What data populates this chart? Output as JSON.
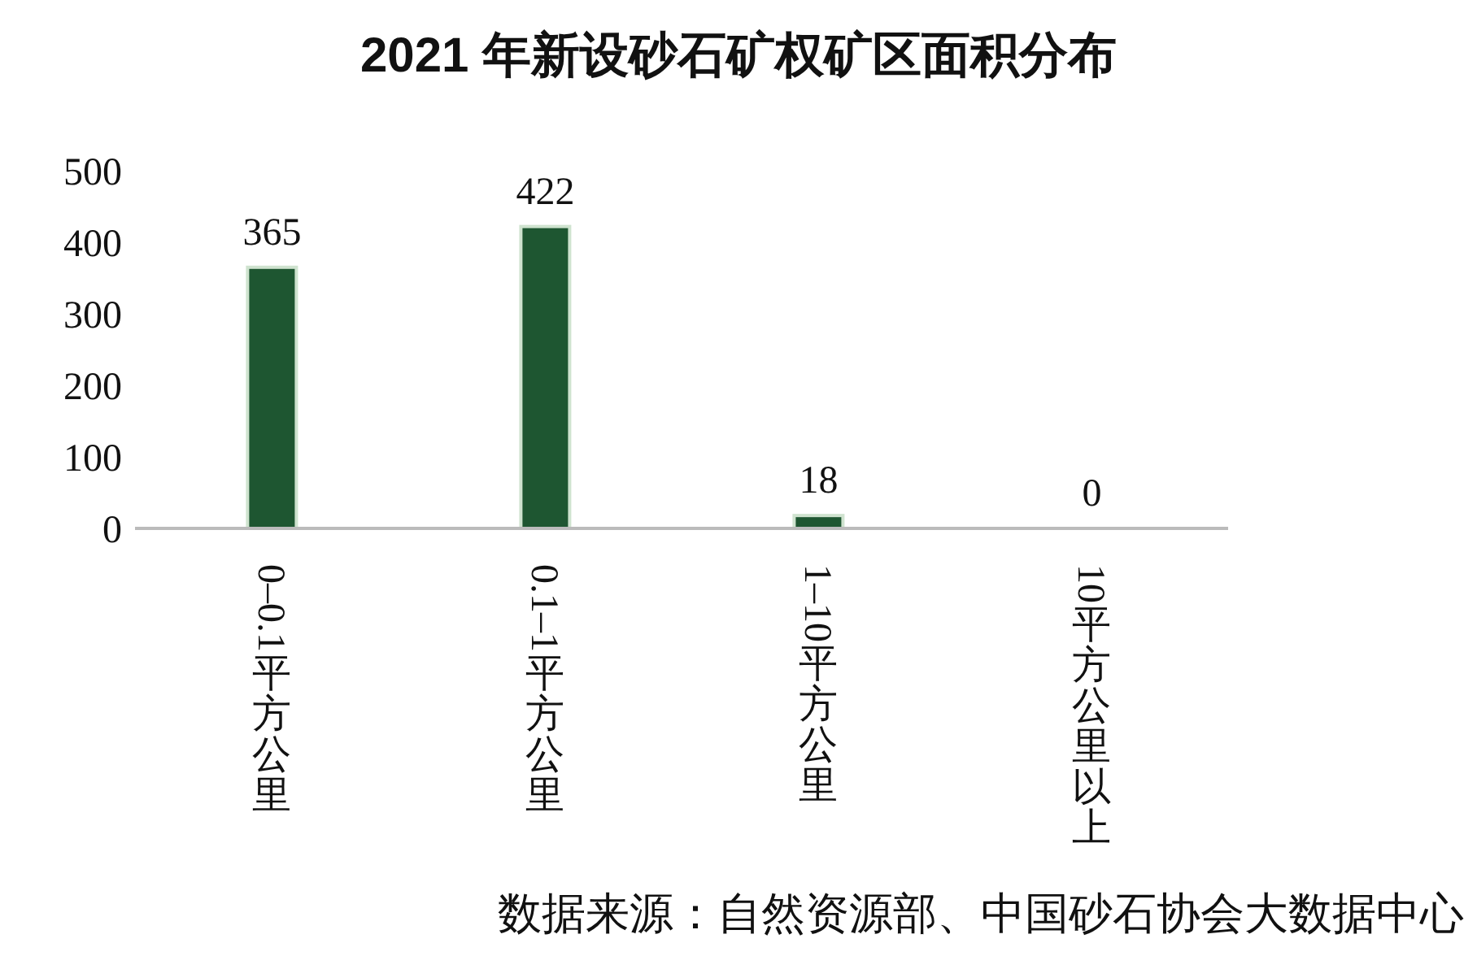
{
  "chart_data": {
    "type": "bar",
    "title": "2021 年新设砂石矿权矿区面积分布",
    "categories": [
      "0–0.1平方公里",
      "0.1–1平方公里",
      "1–10平方公里",
      "10平方公里以上"
    ],
    "values": [
      365,
      422,
      18,
      0
    ],
    "color": "#1e5631",
    "ylim": [
      0,
      500
    ],
    "yticks": [
      0,
      100,
      200,
      300,
      400,
      500
    ],
    "grid": false,
    "data_labels": true,
    "legend": false,
    "annotations": [
      "数据来源：自然资源部、中国砂石协会大数据中心"
    ]
  }
}
